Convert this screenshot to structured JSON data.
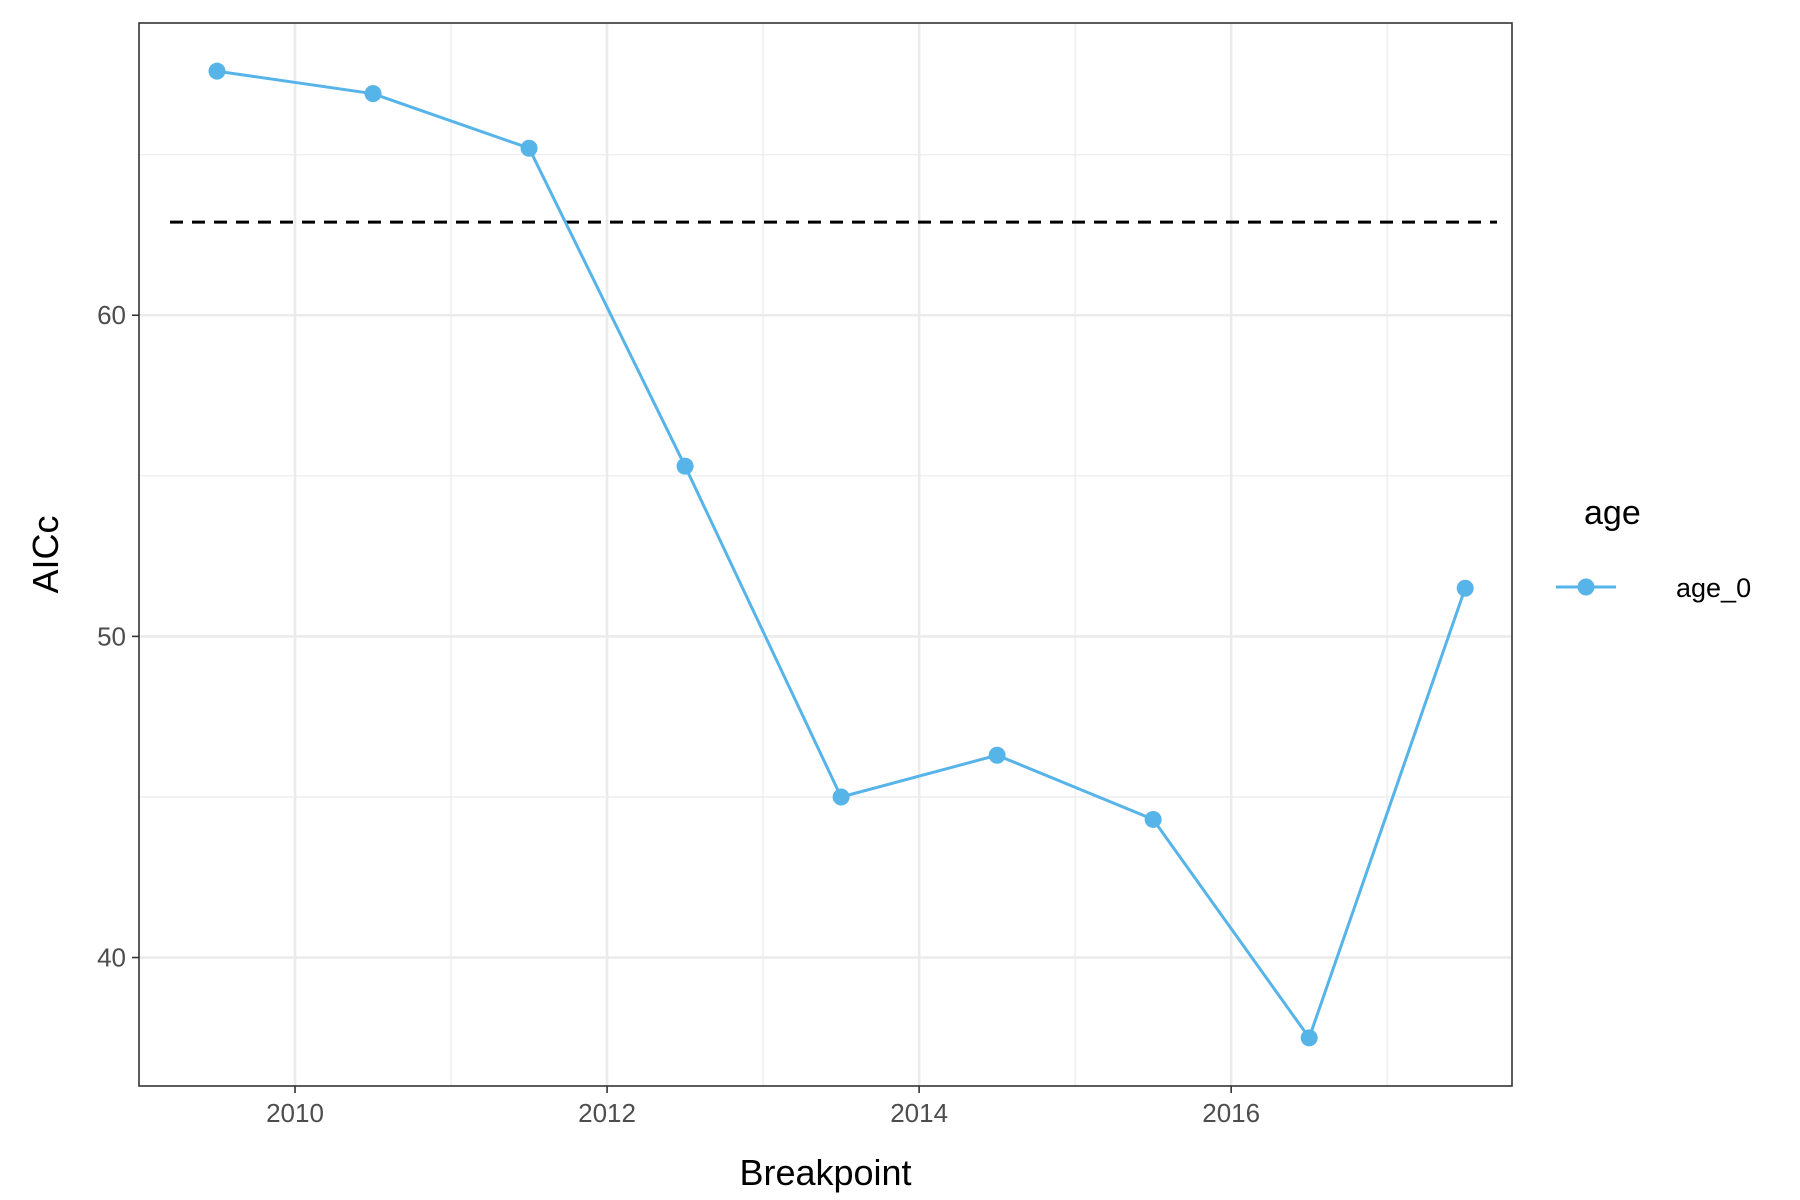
{
  "chart_data": {
    "type": "line",
    "title": "",
    "xlabel": "Breakpoint",
    "ylabel": "AICc",
    "xlim": [
      2009.0,
      2017.8
    ],
    "ylim": [
      36.0,
      69.1
    ],
    "x_ticks_major": [
      2010,
      2012,
      2014,
      2016
    ],
    "x_ticks_minor": [
      2011,
      2013,
      2015,
      2017
    ],
    "y_ticks_major": [
      40,
      50,
      60
    ],
    "y_ticks_minor": [
      45,
      55,
      65
    ],
    "grid": true,
    "reference_line": {
      "y": 62.9,
      "style": "dashed",
      "color": "#000000"
    },
    "legend": {
      "title": "age",
      "position": "right"
    },
    "series": [
      {
        "name": "age_0",
        "color": "#56B4E9",
        "x": [
          2009.5,
          2010.5,
          2011.5,
          2012.5,
          2013.5,
          2014.5,
          2015.5,
          2016.5,
          2017.5
        ],
        "y": [
          67.6,
          66.9,
          65.2,
          55.3,
          45.0,
          46.3,
          44.3,
          37.5,
          51.5
        ]
      }
    ]
  }
}
